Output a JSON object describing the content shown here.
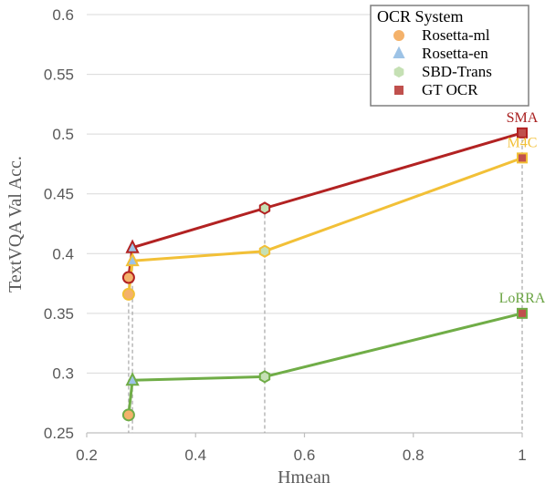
{
  "chart_data": {
    "type": "scatter",
    "xlabel": "Hmean",
    "ylabel": "TextVQA Val Acc.",
    "xlim": [
      0.2,
      1.0
    ],
    "ylim": [
      0.25,
      0.6
    ],
    "x_ticks": [
      "0.2",
      "0.4",
      "0.6",
      "0.8",
      "1"
    ],
    "y_ticks": [
      "0.25",
      "0.3",
      "0.35",
      "0.4",
      "0.45",
      "0.5",
      "0.55",
      "0.6"
    ],
    "grid": "horizontal",
    "legend": {
      "title": "OCR System",
      "position": "top-right",
      "entries": [
        {
          "label": "Rosetta-ml",
          "marker": "circle",
          "color": "#F4B26B"
        },
        {
          "label": "Rosetta-en",
          "marker": "triangle",
          "color": "#9DC3E6"
        },
        {
          "label": "SBD-Trans",
          "marker": "hexagon",
          "color": "#C5E0B4"
        },
        {
          "label": "GT OCR",
          "marker": "square",
          "color": "#C0504D"
        }
      ]
    },
    "ocr_hmean": {
      "Rosetta-ml": 0.277,
      "Rosetta-en": 0.284,
      "SBD-Trans": 0.527,
      "GT OCR": 1.0
    },
    "series": [
      {
        "name": "SMA",
        "color": "#B22222",
        "points": [
          {
            "ocr": "Rosetta-ml",
            "y": 0.38
          },
          {
            "ocr": "Rosetta-en",
            "y": 0.405
          },
          {
            "ocr": "SBD-Trans",
            "y": 0.438
          },
          {
            "ocr": "GT OCR",
            "y": 0.501
          }
        ]
      },
      {
        "name": "M4C",
        "color": "#F2C037",
        "points": [
          {
            "ocr": "Rosetta-ml",
            "y": 0.366
          },
          {
            "ocr": "Rosetta-en",
            "y": 0.394
          },
          {
            "ocr": "SBD-Trans",
            "y": 0.402
          },
          {
            "ocr": "GT OCR",
            "y": 0.48
          }
        ]
      },
      {
        "name": "LoRRA",
        "color": "#70AD47",
        "points": [
          {
            "ocr": "Rosetta-ml",
            "y": 0.265
          },
          {
            "ocr": "Rosetta-en",
            "y": 0.294
          },
          {
            "ocr": "SBD-Trans",
            "y": 0.297
          },
          {
            "ocr": "GT OCR",
            "y": 0.35
          }
        ]
      }
    ]
  }
}
